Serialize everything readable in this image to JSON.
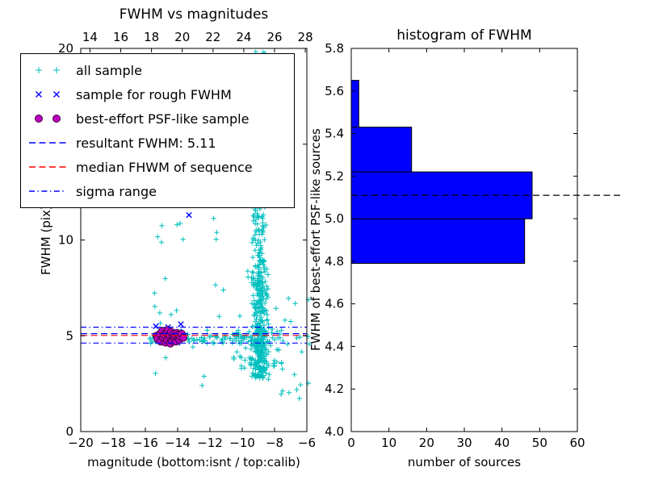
{
  "window": {
    "background": "#ffffff"
  },
  "chart_data": [
    {
      "type": "scatter",
      "title": "FWHM vs magnitudes",
      "xlabel": "magnitude (bottom:isnt / top:calib)",
      "ylabel": "FWHM (pix)",
      "xlim": [
        -20,
        -6
      ],
      "ylim": [
        0,
        20
      ],
      "xticks": [
        -20,
        -18,
        -16,
        -14,
        -12,
        -10,
        -8,
        -6
      ],
      "yticks": [
        0,
        5,
        10,
        15,
        20
      ],
      "top_axis": {
        "lim": [
          13.4,
          28.1
        ],
        "ticks": [
          14,
          16,
          18,
          20,
          22,
          24,
          26,
          28
        ]
      },
      "grid": false,
      "legend_position": "upper-left",
      "series": [
        {
          "name": "all sample",
          "marker": "plus",
          "color": "#00bfbf",
          "point_clusters": [
            {
              "count": 200,
              "mag": [
                -9.5,
                -8.35
              ],
              "fwhm": [
                2.8,
                5.5
              ],
              "mag_shape": "center"
            },
            {
              "count": 150,
              "mag": [
                -9.5,
                -8.35
              ],
              "fwhm": [
                5.5,
                9.0
              ],
              "mag_shape": "center"
            },
            {
              "count": 90,
              "mag": [
                -9.45,
                -8.45
              ],
              "fwhm": [
                9.0,
                13.5
              ],
              "mag_shape": "center"
            },
            {
              "count": 45,
              "mag": [
                -9.4,
                -8.5
              ],
              "fwhm": [
                13.5,
                17.5
              ]
            },
            {
              "count": 25,
              "mag": [
                -9.35,
                -8.55
              ],
              "fwhm": [
                17.5,
                19.9
              ]
            },
            {
              "count": 70,
              "mag": [
                -10.6,
                -7.4
              ],
              "fwhm": [
                3.2,
                5.3
              ]
            },
            {
              "count": 75,
              "mag": [
                -16.0,
                -9.4
              ],
              "fwhm": [
                4.6,
                5.1
              ]
            },
            {
              "count": 55,
              "mag": [
                -16.3,
                -9.5
              ],
              "fwhm": [
                2.0,
                19.9
              ]
            },
            {
              "count": 26,
              "mag": [
                -8.4,
                -5.8
              ],
              "fwhm": [
                2.3,
                7.0
              ]
            },
            {
              "count": 8,
              "mag": [
                -13.5,
                -9.5
              ],
              "fwhm": [
                18.0,
                19.9
              ]
            },
            {
              "count": 5,
              "mag": [
                -7.6,
                -6.2
              ],
              "fwhm": [
                1.2,
                2.2
              ]
            }
          ]
        },
        {
          "name": "sample for rough FWHM",
          "marker": "x",
          "color": "#0000ff",
          "points": [
            [
              -15.2,
              5.05
            ],
            [
              -14.9,
              5.3
            ],
            [
              -14.7,
              4.9
            ],
            [
              -14.5,
              5.15
            ],
            [
              -14.3,
              4.8
            ],
            [
              -14.1,
              5.0
            ],
            [
              -13.9,
              5.2
            ],
            [
              -13.7,
              4.85
            ],
            [
              -15.0,
              4.7
            ],
            [
              -14.6,
              5.45
            ],
            [
              -13.8,
              5.6
            ],
            [
              -13.3,
              11.3
            ],
            [
              -15.35,
              5.5
            ],
            [
              -14.0,
              4.65
            ]
          ]
        },
        {
          "name": "best-effort PSF-like sample",
          "marker": "circle",
          "color": "#bf00bf",
          "edge_color": "#3c003c",
          "points": [
            [
              -15.3,
              5.0
            ],
            [
              -15.25,
              4.85
            ],
            [
              -15.1,
              5.1
            ],
            [
              -15.05,
              4.7
            ],
            [
              -14.95,
              5.25
            ],
            [
              -14.9,
              4.9
            ],
            [
              -14.85,
              5.05
            ],
            [
              -14.75,
              4.65
            ],
            [
              -14.7,
              5.15
            ],
            [
              -14.65,
              4.8
            ],
            [
              -14.6,
              5.3
            ],
            [
              -14.55,
              4.95
            ],
            [
              -14.5,
              5.05
            ],
            [
              -14.45,
              4.6
            ],
            [
              -14.4,
              5.2
            ],
            [
              -14.35,
              4.75
            ],
            [
              -14.3,
              4.95
            ],
            [
              -14.25,
              5.1
            ],
            [
              -14.2,
              4.85
            ],
            [
              -14.15,
              5.0
            ],
            [
              -14.1,
              4.7
            ],
            [
              -14.05,
              5.15
            ],
            [
              -14.0,
              4.9
            ],
            [
              -13.95,
              5.05
            ],
            [
              -13.9,
              4.8
            ],
            [
              -13.85,
              4.95
            ],
            [
              -13.75,
              5.1
            ],
            [
              -13.65,
              4.9
            ]
          ]
        }
      ],
      "hlines": [
        {
          "name": "resultant-fwhm-line",
          "y": 5.11,
          "color": "#0000ff",
          "style": "dashed"
        },
        {
          "name": "median-fwhm-line",
          "y": 5.02,
          "color": "#ff0000",
          "style": "dashed"
        },
        {
          "name": "sigma-range-upper-line",
          "y": 5.45,
          "color": "#0000ff",
          "style": "dashdot"
        },
        {
          "name": "sigma-range-lower-line",
          "y": 4.62,
          "color": "#0000ff",
          "style": "dashdot"
        }
      ],
      "legend": {
        "items": [
          {
            "label": "all sample",
            "kind": "marker",
            "marker": "plus",
            "color": "#00bfbf"
          },
          {
            "label": "sample for rough FWHM",
            "kind": "marker",
            "marker": "x",
            "color": "#0000ff"
          },
          {
            "label": "best-effort PSF-like sample",
            "kind": "marker",
            "marker": "circle",
            "color": "#bf00bf",
            "edge_color": "#3c003c"
          },
          {
            "label": "resultant FWHM: 5.11",
            "kind": "line",
            "style": "dashed",
            "color": "#0000ff"
          },
          {
            "label": "median FHWM of sequence",
            "kind": "line",
            "style": "dashed",
            "color": "#ff0000"
          },
          {
            "label": "sigma range",
            "kind": "line",
            "style": "dashdot",
            "color": "#0000ff"
          }
        ]
      }
    },
    {
      "type": "bar-horizontal",
      "title": "histogram of FWHM",
      "xlabel": "number of sources",
      "ylabel": "FWHM of best-effort PSF-like sources",
      "xlim": [
        0,
        60
      ],
      "ylim": [
        4.0,
        5.8
      ],
      "xticks": [
        0,
        10,
        20,
        30,
        40,
        50,
        60
      ],
      "yticks": [
        4.0,
        4.2,
        4.4,
        4.6,
        4.8,
        5.0,
        5.2,
        5.4,
        5.6,
        5.8
      ],
      "bin_edges": [
        4.79,
        5.0,
        5.22,
        5.43,
        5.65
      ],
      "counts": [
        46,
        48,
        16,
        2
      ],
      "bar_color": "#0000ff",
      "bar_edge_color": "#000000",
      "hline": {
        "name": "resultant-fwhm-line-right",
        "y": 5.11,
        "color": "#000000",
        "style": "dashed",
        "extends_beyond_axes": true
      }
    }
  ]
}
